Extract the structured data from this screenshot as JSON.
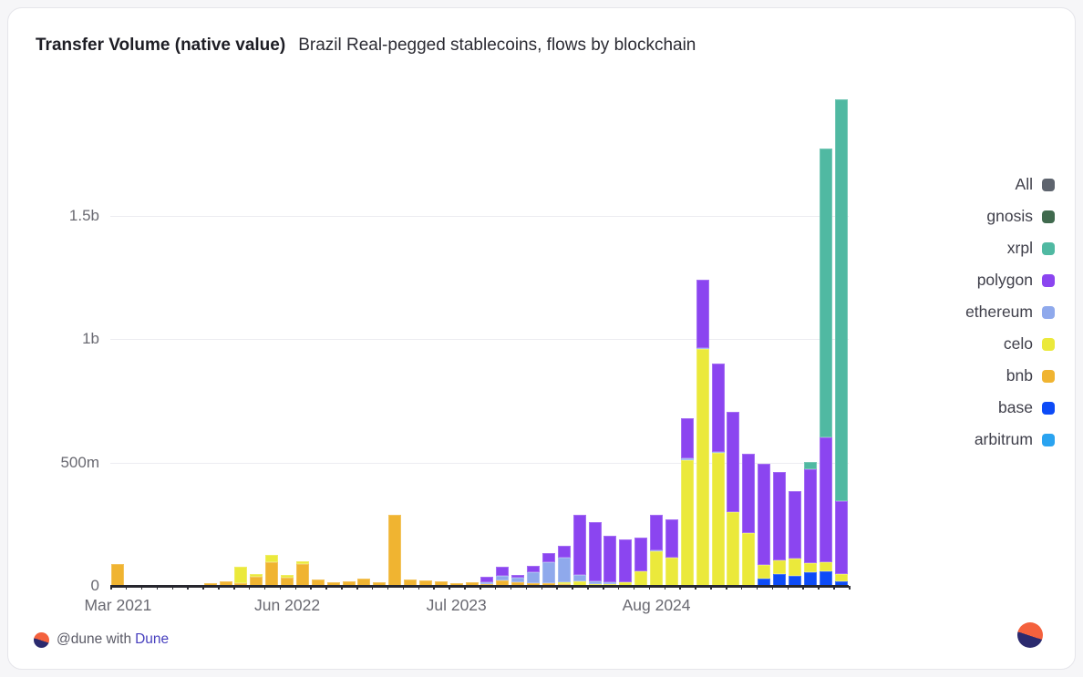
{
  "header": {
    "title_bold": "Transfer Volume (native value)",
    "title_sub": "Brazil Real-pegged stablecoins, flows by blockchain"
  },
  "footer": {
    "attribution_prefix": "@dune with",
    "attribution_brand": "Dune"
  },
  "chart_data": {
    "type": "bar",
    "stacked": true,
    "title": "Transfer Volume (native value)",
    "subtitle": "Brazil Real-pegged stablecoins, flows by blockchain",
    "values_unit": "millions (native value)",
    "ylim_millions": [
      0,
      2000
    ],
    "grid": "horizontal",
    "legend_position": "right",
    "y_ticks": [
      {
        "label": "0",
        "value": 0
      },
      {
        "label": "500m",
        "value": 500
      },
      {
        "label": "1b",
        "value": 1000
      },
      {
        "label": "1.5b",
        "value": 1500
      }
    ],
    "x_ticks": [
      {
        "label": "Mar 2021",
        "bar_index": 0
      },
      {
        "label": "Jun 2022",
        "bar_index": 11
      },
      {
        "label": "Jul 2023",
        "bar_index": 22
      },
      {
        "label": "Aug 2024",
        "bar_index": 35
      }
    ],
    "legend": [
      {
        "label": "All",
        "color": "#5e646e"
      },
      {
        "label": "gnosis",
        "color": "#406a4e"
      },
      {
        "label": "xrpl",
        "color": "#50b9a2"
      },
      {
        "label": "polygon",
        "color": "#8b45f0"
      },
      {
        "label": "ethereum",
        "color": "#8fa9ec"
      },
      {
        "label": "celo",
        "color": "#ebe93b"
      },
      {
        "label": "bnb",
        "color": "#f0b431"
      },
      {
        "label": "base",
        "color": "#0d4bf7"
      },
      {
        "label": "arbitrum",
        "color": "#2aa3f0"
      }
    ],
    "stack_order": [
      "arbitrum",
      "base",
      "bnb",
      "celo",
      "ethereum",
      "polygon",
      "xrpl",
      "gnosis"
    ],
    "series_colors": {
      "arbitrum": "#2aa3f0",
      "base": "#0d4bf7",
      "bnb": "#f0b431",
      "celo": "#ebe93b",
      "ethereum": "#8fa9ec",
      "polygon": "#8b45f0",
      "xrpl": "#50b9a2",
      "gnosis": "#406a4e"
    },
    "bars": [
      {
        "bnb": 90
      },
      {},
      {},
      {},
      {},
      {},
      {
        "bnb": 10
      },
      {
        "bnb": 18
      },
      {
        "bnb": 11,
        "celo": 67
      },
      {
        "bnb": 37,
        "celo": 11
      },
      {
        "bnb": 96,
        "celo": 30
      },
      {
        "bnb": 33,
        "celo": 11
      },
      {
        "bnb": 89,
        "celo": 11
      },
      {
        "bnb": 26
      },
      {
        "bnb": 15
      },
      {
        "bnb": 18
      },
      {
        "bnb": 30
      },
      {
        "bnb": 15
      },
      {
        "bnb": 290
      },
      {
        "bnb": 26
      },
      {
        "bnb": 22
      },
      {
        "bnb": 18
      },
      {
        "bnb": 11
      },
      {
        "bnb": 15
      },
      {
        "bnb": 8,
        "ethereum": 8,
        "polygon": 20
      },
      {
        "bnb": 22,
        "ethereum": 18,
        "polygon": 37
      },
      {
        "bnb": 15,
        "ethereum": 18,
        "polygon": 11
      },
      {
        "bnb": 11,
        "ethereum": 44,
        "polygon": 26
      },
      {
        "bnb": 11,
        "ethereum": 85,
        "polygon": 37
      },
      {
        "bnb": 7,
        "celo": 7,
        "ethereum": 100,
        "polygon": 48
      },
      {
        "celo": 18,
        "ethereum": 26,
        "polygon": 245
      },
      {
        "celo": 7,
        "ethereum": 11,
        "polygon": 241
      },
      {
        "celo": 7,
        "ethereum": 7,
        "polygon": 190
      },
      {
        "celo": 15,
        "polygon": 174
      },
      {
        "celo": 59,
        "polygon": 137
      },
      {
        "celo": 140,
        "ethereum": 5,
        "polygon": 143
      },
      {
        "celo": 115,
        "polygon": 155
      },
      {
        "celo": 510,
        "ethereum": 8,
        "polygon": 160
      },
      {
        "celo": 960,
        "ethereum": 5,
        "polygon": 278
      },
      {
        "celo": 540,
        "ethereum": 4,
        "polygon": 359
      },
      {
        "celo": 300,
        "polygon": 404
      },
      {
        "celo": 214,
        "polygon": 322
      },
      {
        "base": 30,
        "celo": 55,
        "polygon": 410
      },
      {
        "base": 48,
        "celo": 55,
        "polygon": 359
      },
      {
        "base": 41,
        "celo": 70,
        "polygon": 274
      },
      {
        "base": 55,
        "celo": 37,
        "polygon": 381,
        "xrpl": 30
      },
      {
        "base": 59,
        "celo": 37,
        "polygon": 507,
        "xrpl": 1172
      },
      {
        "base": 18,
        "celo": 30,
        "polygon": 296,
        "xrpl": 1630
      }
    ]
  }
}
